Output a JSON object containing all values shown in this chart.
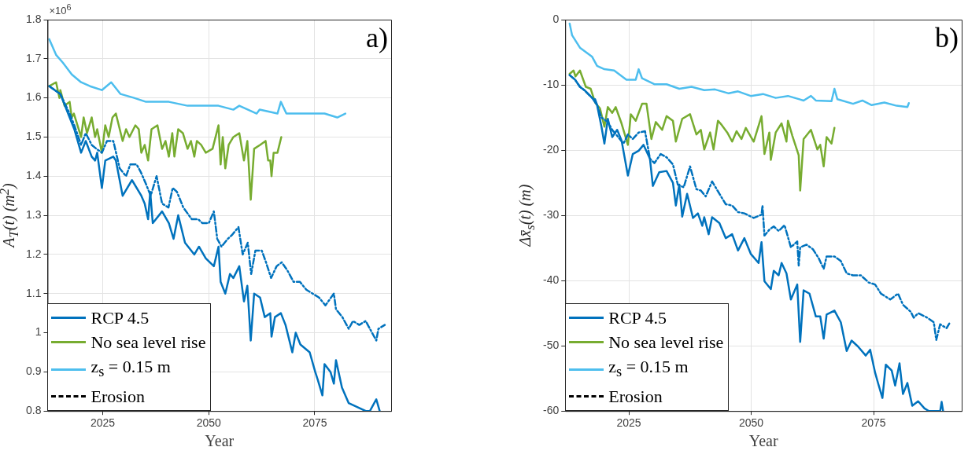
{
  "chart_data": [
    {
      "type": "line",
      "xlabel": "Year",
      "ylabel": "A$_{T}$(t) (m$^{2}$)",
      "annotations": [
        "a)",
        "×10$^{6}$"
      ],
      "xlim": [
        2012,
        2093
      ],
      "xticks": [
        2025,
        2050,
        2075
      ],
      "ylim": [
        0.8,
        1.8
      ],
      "yticks": [
        0.8,
        0.9,
        1,
        1.1,
        1.2,
        1.3,
        1.4,
        1.5,
        1.6,
        1.7,
        1.8
      ],
      "grid": true,
      "legend": "bottom left",
      "marker": "none",
      "series": [
        {
          "name": "RCP 4.5",
          "color": "#0072bd",
          "x": [
            2012.4,
            2015,
            2017.2,
            2018.3,
            2019.9,
            2021,
            2022.4,
            2023.2,
            2023.7,
            2024.8,
            2025.6,
            2027.5,
            2028.1,
            2029.7,
            2031.9,
            2034.1,
            2034.9,
            2035.7,
            2036.2,
            2036.8,
            2039,
            2040.6,
            2041.7,
            2042.8,
            2044.4,
            2046.6,
            2047.7,
            2049.3,
            2051.2,
            2052.3,
            2052.8,
            2053.9,
            2055,
            2055.8,
            2057.2,
            2058.3,
            2059.1,
            2059.9,
            2060.7,
            2062.1,
            2063.2,
            2064.5,
            2064.8,
            2065.6,
            2067,
            2068.1,
            2069.7,
            2070.5,
            2071.6,
            2073.8,
            2075.1,
            2075.7,
            2076.8,
            2077.3,
            2078.7,
            2079.5,
            2080,
            2081.4,
            2083,
            2085,
            2087,
            2088,
            2089.5,
            2090.3
          ],
          "values": [
            1.63,
            1.61,
            1.55,
            1.52,
            1.46,
            1.49,
            1.45,
            1.44,
            1.46,
            1.37,
            1.44,
            1.45,
            1.44,
            1.35,
            1.39,
            1.35,
            1.33,
            1.29,
            1.36,
            1.28,
            1.31,
            1.28,
            1.24,
            1.3,
            1.23,
            1.2,
            1.22,
            1.19,
            1.17,
            1.22,
            1.13,
            1.1,
            1.15,
            1.14,
            1.17,
            1.08,
            1.12,
            0.98,
            1.1,
            1.09,
            1.04,
            1.05,
            0.99,
            1.04,
            1.05,
            1.02,
            0.95,
            1.0,
            0.97,
            0.95,
            0.9,
            0.88,
            0.84,
            0.92,
            0.9,
            0.87,
            0.93,
            0.86,
            0.82,
            0.81,
            0.8,
            0.8,
            0.83,
            0.8
          ]
        },
        {
          "color": "#0072bd",
          "line_style": "dashed",
          "x": [
            2012.4,
            2015,
            2017.2,
            2018.3,
            2019.9,
            2021,
            2022.4,
            2023.5,
            2024.8,
            2026,
            2027.5,
            2029,
            2030.5,
            2031.5,
            2033,
            2034,
            2035.2,
            2036.3,
            2037.7,
            2039,
            2040.5,
            2041.5,
            2042.5,
            2044,
            2046,
            2047.5,
            2048.5,
            2050,
            2051.2,
            2052,
            2053,
            2054.5,
            2055.5,
            2057,
            2058,
            2059.2,
            2060,
            2061,
            2062.5,
            2063.5,
            2064.7,
            2066,
            2067.2,
            2068.5,
            2070,
            2071.5,
            2073,
            2074.5,
            2076,
            2077.5,
            2079.5,
            2080,
            2081.5,
            2083,
            2084,
            2085.5,
            2087,
            2088.5,
            2089.5,
            2090,
            2091.5
          ],
          "values": [
            1.63,
            1.61,
            1.56,
            1.53,
            1.48,
            1.51,
            1.48,
            1.47,
            1.46,
            1.49,
            1.49,
            1.42,
            1.4,
            1.43,
            1.43,
            1.41,
            1.38,
            1.35,
            1.4,
            1.33,
            1.32,
            1.37,
            1.36,
            1.32,
            1.29,
            1.29,
            1.28,
            1.28,
            1.31,
            1.24,
            1.22,
            1.24,
            1.25,
            1.27,
            1.2,
            1.23,
            1.15,
            1.21,
            1.21,
            1.18,
            1.14,
            1.17,
            1.18,
            1.16,
            1.13,
            1.13,
            1.11,
            1.1,
            1.09,
            1.07,
            1.1,
            1.06,
            1.04,
            1.01,
            1.03,
            1.02,
            1.03,
            1.0,
            0.98,
            1.01,
            1.02
          ]
        },
        {
          "name": "No sea level rise",
          "color": "#77ac30",
          "x": [
            2012.4,
            2014,
            2014.8,
            2015,
            2016,
            2017.2,
            2017.7,
            2018.2,
            2019.9,
            2020.5,
            2021.3,
            2022.4,
            2023.2,
            2023.7,
            2024.8,
            2025.6,
            2026.4,
            2027.3,
            2028.1,
            2029.7,
            2030.5,
            2031.3,
            2032.7,
            2033.5,
            2034.1,
            2034.9,
            2035.7,
            2036.5,
            2037.9,
            2039,
            2039.8,
            2040.6,
            2041.4,
            2041.9,
            2042.8,
            2043.9,
            2045,
            2045.8,
            2046.6,
            2047.2,
            2048.2,
            2049.3,
            2050.9,
            2052.3,
            2052.8,
            2053.3,
            2053.9,
            2054.7,
            2055.8,
            2057.2,
            2058.3,
            2059.1,
            2059.9,
            2060.7,
            2062.1,
            2063.4,
            2064,
            2064.5,
            2064.8,
            2065.3,
            2066.2,
            2067.1
          ],
          "values": [
            1.63,
            1.64,
            1.6,
            1.62,
            1.58,
            1.59,
            1.55,
            1.56,
            1.5,
            1.55,
            1.51,
            1.55,
            1.5,
            1.52,
            1.46,
            1.53,
            1.5,
            1.55,
            1.56,
            1.49,
            1.52,
            1.5,
            1.53,
            1.52,
            1.46,
            1.48,
            1.44,
            1.52,
            1.53,
            1.47,
            1.49,
            1.45,
            1.51,
            1.45,
            1.52,
            1.51,
            1.47,
            1.49,
            1.45,
            1.49,
            1.48,
            1.46,
            1.47,
            1.53,
            1.43,
            1.5,
            1.42,
            1.48,
            1.5,
            1.51,
            1.44,
            1.49,
            1.34,
            1.47,
            1.48,
            1.49,
            1.44,
            1.44,
            1.4,
            1.46,
            1.46,
            1.5
          ]
        },
        {
          "name": "z$_{s}$ = 0.15 m",
          "color": "#4dbeee",
          "x": [
            2012.4,
            2014,
            2015.6,
            2017.7,
            2019.9,
            2022,
            2024.8,
            2027,
            2029.2,
            2032.4,
            2035.2,
            2037.3,
            2040.6,
            2045,
            2050.4,
            2052.3,
            2055.8,
            2057.2,
            2061.3,
            2062,
            2066.2,
            2067,
            2068.3,
            2072.1,
            2074.9,
            2077.3,
            2080.3,
            2082.2
          ],
          "values": [
            1.75,
            1.71,
            1.69,
            1.66,
            1.64,
            1.63,
            1.62,
            1.64,
            1.61,
            1.6,
            1.59,
            1.59,
            1.59,
            1.58,
            1.58,
            1.58,
            1.57,
            1.58,
            1.56,
            1.57,
            1.56,
            1.59,
            1.56,
            1.56,
            1.56,
            1.56,
            1.55,
            1.56
          ]
        },
        {
          "name": "Erosion",
          "color": "#000000",
          "line_style": "dashed"
        }
      ]
    },
    {
      "type": "line",
      "xlabel": "Year",
      "ylabel": "Δx̄$_{s}$(t) (m)",
      "annotations": [
        "b)"
      ],
      "xlim": [
        2012,
        2093
      ],
      "xticks": [
        2025,
        2050,
        2075
      ],
      "ylim": [
        -60,
        0
      ],
      "yticks": [
        -60,
        -50,
        -40,
        -30,
        -20,
        -10,
        0
      ],
      "grid": true,
      "legend": "bottom left",
      "marker": "none",
      "series": [
        {
          "name": "RCP 4.5",
          "color": "#0072bd",
          "x": [
            2012.9,
            2014,
            2015,
            2015.9,
            2017.5,
            2018.5,
            2019.4,
            2020,
            2020.7,
            2021.6,
            2022.6,
            2023.5,
            2024.8,
            2025.8,
            2027,
            2028,
            2029.3,
            2029.9,
            2031.2,
            2032.7,
            2034,
            2034.6,
            2035.3,
            2035.9,
            2036.9,
            2038.1,
            2039.1,
            2040,
            2040.4,
            2041.3,
            2042,
            2043.5,
            2044.8,
            2046.1,
            2047.3,
            2048.6,
            2049.9,
            2051.5,
            2052.1,
            2052.7,
            2054,
            2054.6,
            2055.6,
            2056.2,
            2057.2,
            2058.1,
            2059.4,
            2060,
            2060.7,
            2061.9,
            2063.2,
            2064.1,
            2064.8,
            2065.4,
            2067,
            2068.3,
            2069.5,
            2070.5,
            2071.8,
            2073.4,
            2074.3,
            2075.3,
            2075.9,
            2076.8,
            2077.5,
            2078.7,
            2079.4,
            2080.3,
            2081,
            2081.9,
            2082.9,
            2084.1,
            2085.4,
            2086.3,
            2088.6,
            2088.9,
            2089.2
          ],
          "values": [
            -8.5,
            -9.2,
            -10.3,
            -10.8,
            -12,
            -13.1,
            -16.4,
            -19,
            -15.2,
            -18,
            -16.9,
            -18.5,
            -23.9,
            -20.6,
            -20.1,
            -19.2,
            -21.3,
            -25.5,
            -23.4,
            -23.2,
            -25,
            -28.5,
            -25.3,
            -30.2,
            -26.7,
            -30.4,
            -29.7,
            -31.6,
            -30.3,
            -32.9,
            -30.3,
            -31.2,
            -33.5,
            -32.9,
            -35.4,
            -33.5,
            -35.9,
            -37.3,
            -34.1,
            -40.1,
            -41.3,
            -38.5,
            -39.2,
            -37.3,
            -38.9,
            -42.9,
            -40.6,
            -49.4,
            -41.5,
            -42,
            -45.5,
            -45.5,
            -48.9,
            -45.2,
            -44.6,
            -46.4,
            -50.8,
            -49.2,
            -50.1,
            -51.5,
            -50.6,
            -54.1,
            -55.7,
            -58,
            -52.9,
            -53.8,
            -56.1,
            -52.7,
            -57.4,
            -55.7,
            -59.2,
            -58.5,
            -59.6,
            -60,
            -60,
            -58.6,
            -60
          ]
        },
        {
          "color": "#0072bd",
          "line_style": "dashed",
          "x": [
            2012.9,
            2014,
            2015,
            2015.9,
            2017.5,
            2018.1,
            2019.4,
            2020.7,
            2021.6,
            2022.6,
            2023.9,
            2024.8,
            2025.8,
            2027,
            2028.3,
            2029.3,
            2030.2,
            2031.5,
            2032.7,
            2034,
            2035,
            2036.2,
            2037.5,
            2038.8,
            2039.7,
            2040.7,
            2042,
            2043.5,
            2044.8,
            2046.1,
            2047.3,
            2048.6,
            2050.5,
            2052.1,
            2052.3,
            2052.7,
            2053.7,
            2054.6,
            2055.6,
            2056.8,
            2058.1,
            2059.4,
            2059.7,
            2060,
            2061.3,
            2062.6,
            2063.8,
            2064.8,
            2065.4,
            2067,
            2068.3,
            2069.5,
            2070.8,
            2072.4,
            2074,
            2075.3,
            2076.5,
            2078.4,
            2080,
            2081,
            2082.6,
            2083.2,
            2084.1,
            2086,
            2087.3,
            2087.8,
            2088.6,
            2089.9,
            2090.6
          ],
          "values": [
            -8.5,
            -9.2,
            -10.3,
            -10.8,
            -12,
            -12.2,
            -15,
            -15.7,
            -16.9,
            -17.8,
            -19,
            -17.6,
            -18.3,
            -17.3,
            -17.1,
            -21.3,
            -22,
            -20.6,
            -21.1,
            -22.2,
            -25.3,
            -25.7,
            -22.5,
            -26,
            -26.2,
            -27.1,
            -24.8,
            -26.7,
            -28.3,
            -28.5,
            -29.5,
            -29.7,
            -30.4,
            -29.9,
            -28.5,
            -33.1,
            -32.2,
            -31.7,
            -32.4,
            -31.5,
            -34.9,
            -34,
            -37.7,
            -34.9,
            -34.5,
            -35.2,
            -36.6,
            -38.2,
            -36.3,
            -36.3,
            -37,
            -38.9,
            -39.2,
            -39.2,
            -40.3,
            -40.6,
            -42,
            -42.9,
            -42,
            -43.7,
            -44.8,
            -45.7,
            -45,
            -45.7,
            -46.4,
            -49.1,
            -46.7,
            -47.3,
            -46.4
          ]
        },
        {
          "name": "No sea level rise",
          "color": "#77ac30",
          "x": [
            2012.9,
            2013.7,
            2014.1,
            2015,
            2016.2,
            2017.2,
            2018.1,
            2019.1,
            2020,
            2020.7,
            2021.6,
            2022.3,
            2023.5,
            2024.8,
            2025.4,
            2026.4,
            2027.7,
            2028.6,
            2029.6,
            2030.5,
            2031.8,
            2032.7,
            2034,
            2034.6,
            2035.9,
            2037.5,
            2038.8,
            2039.7,
            2040.4,
            2041.6,
            2042.3,
            2043.2,
            2043.8,
            2045.1,
            2046.1,
            2047,
            2048,
            2048.9,
            2050.5,
            2052.1,
            2052.7,
            2053.7,
            2054,
            2055,
            2056.2,
            2057.2,
            2057.5,
            2058.4,
            2059.7,
            2060,
            2060.7,
            2062.2,
            2063.5,
            2064.1,
            2064.8,
            2065.4,
            2066.4,
            2067
          ],
          "values": [
            -8.3,
            -7.8,
            -8.7,
            -7.8,
            -10.3,
            -10.6,
            -12.7,
            -13.6,
            -16.4,
            -13.4,
            -14.3,
            -13.4,
            -15.9,
            -19.2,
            -14.5,
            -15.5,
            -12.9,
            -12.9,
            -18.3,
            -15.7,
            -16.9,
            -14.8,
            -15.5,
            -18.7,
            -15.2,
            -14.5,
            -17.6,
            -16.9,
            -19.9,
            -17.3,
            -19.9,
            -15.5,
            -16,
            -17.3,
            -18.7,
            -17.1,
            -18.3,
            -16.6,
            -18.7,
            -14.8,
            -20.6,
            -17.3,
            -21.5,
            -17.3,
            -15.9,
            -18.7,
            -15.5,
            -17.8,
            -20.8,
            -26.2,
            -18.3,
            -16.9,
            -19.9,
            -19.2,
            -22.5,
            -18,
            -19,
            -16.6
          ]
        },
        {
          "name": "z$_{s}$ = 0.15 m",
          "color": "#4dbeee",
          "x": [
            2012.9,
            2013.4,
            2015,
            2017.5,
            2018.5,
            2020,
            2022,
            2024.5,
            2026.4,
            2027,
            2027.7,
            2030.2,
            2032.7,
            2035.3,
            2037.8,
            2040.4,
            2042.6,
            2045.4,
            2047.3,
            2049.9,
            2052.4,
            2055,
            2057.5,
            2060.7,
            2062.2,
            2063.2,
            2066.4,
            2067,
            2067.6,
            2070.8,
            2072.7,
            2074.6,
            2077.2,
            2079.7,
            2081.9,
            2082.2
          ],
          "values": [
            -0.6,
            -2.4,
            -4.3,
            -5.7,
            -7.1,
            -7.6,
            -7.8,
            -9.2,
            -9.2,
            -7.6,
            -9,
            -9.9,
            -9.9,
            -10.6,
            -10.3,
            -10.8,
            -10.7,
            -11.3,
            -11,
            -11.7,
            -11.4,
            -12,
            -11.7,
            -12.4,
            -11.7,
            -12.4,
            -12.5,
            -10.6,
            -12.2,
            -12.9,
            -12.4,
            -13.1,
            -12.7,
            -13.2,
            -13.4,
            -12.8
          ]
        },
        {
          "name": "Erosion",
          "color": "#000000",
          "line_style": "dashed"
        }
      ]
    }
  ]
}
